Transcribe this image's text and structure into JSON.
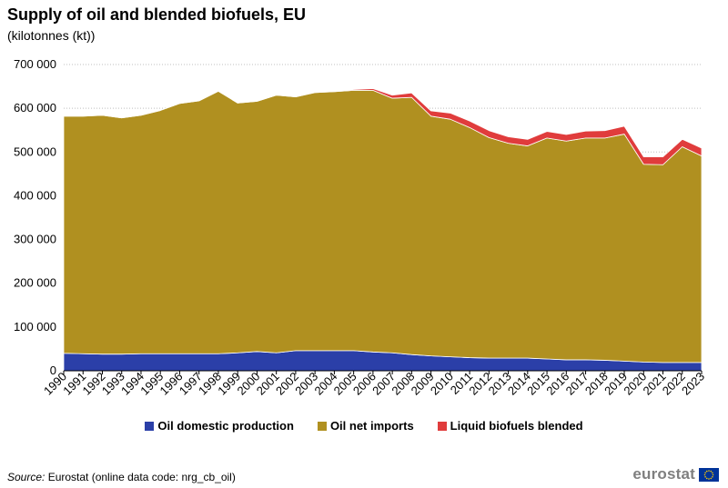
{
  "title": "Supply of oil and blended biofuels, EU",
  "subtitle": "(kilotonnes  (kt))",
  "source_label": "Source:",
  "source_text": " Eurostat (online data code: nrg_cb_oil)",
  "logo_text": "eurostat",
  "colors": {
    "domestic": "#2b3fa8",
    "imports": "#b09020",
    "biofuels": "#e03c3c",
    "grid": "#bfbfbf"
  },
  "chart_data": {
    "type": "area",
    "stacked": true,
    "title": "Supply of oil and blended biofuels, EU",
    "subtitle": "(kilotonnes  (kt))",
    "ylim": [
      0,
      700000
    ],
    "yticks": [
      0,
      100000,
      200000,
      300000,
      400000,
      500000,
      600000,
      700000
    ],
    "ytick_labels": [
      "0",
      "100 000",
      "200 000",
      "300 000",
      "400 000",
      "500 000",
      "600 000",
      "700 000"
    ],
    "grid": "horizontal dotted",
    "legend_position": "bottom",
    "x": [
      "1990",
      "1991",
      "1992",
      "1993",
      "1994",
      "1995",
      "1996",
      "1997",
      "1998",
      "1999",
      "2000",
      "2001",
      "2002",
      "2003",
      "2004",
      "2005",
      "2006",
      "2007",
      "2008",
      "2009",
      "2010",
      "2011",
      "2012",
      "2013",
      "2014",
      "2015",
      "2016",
      "2017",
      "2018",
      "2019",
      "2020",
      "2021",
      "2022",
      "2023"
    ],
    "series": [
      {
        "name": "Oil domestic production",
        "color": "#2b3fa8",
        "values": [
          40000,
          39000,
          38000,
          38000,
          39000,
          39000,
          39000,
          39000,
          39000,
          41000,
          44000,
          41000,
          46000,
          46000,
          46000,
          46000,
          43000,
          41000,
          37000,
          34000,
          32000,
          30000,
          29000,
          29000,
          29000,
          27000,
          25000,
          25000,
          24000,
          22000,
          20000,
          19000,
          19000,
          19000
        ]
      },
      {
        "name": "Oil net imports",
        "color": "#b09020",
        "values": [
          542000,
          543000,
          546000,
          540000,
          545000,
          556000,
          572000,
          578000,
          600000,
          571000,
          572000,
          589000,
          580000,
          590000,
          592000,
          595000,
          598000,
          582000,
          588000,
          548000,
          543000,
          526000,
          504000,
          491000,
          485000,
          505000,
          500000,
          507000,
          508000,
          519000,
          452000,
          452000,
          493000,
          472000
        ]
      },
      {
        "name": "Liquid biofuels blended",
        "color": "#e03c3c",
        "values": [
          0,
          0,
          0,
          0,
          0,
          0,
          0,
          0,
          0,
          0,
          0,
          0,
          0,
          0,
          1000,
          2000,
          4000,
          7000,
          10000,
          12000,
          14000,
          15000,
          16000,
          15000,
          15000,
          15000,
          15000,
          16000,
          17000,
          18000,
          17000,
          18000,
          17000,
          18000
        ]
      }
    ]
  }
}
